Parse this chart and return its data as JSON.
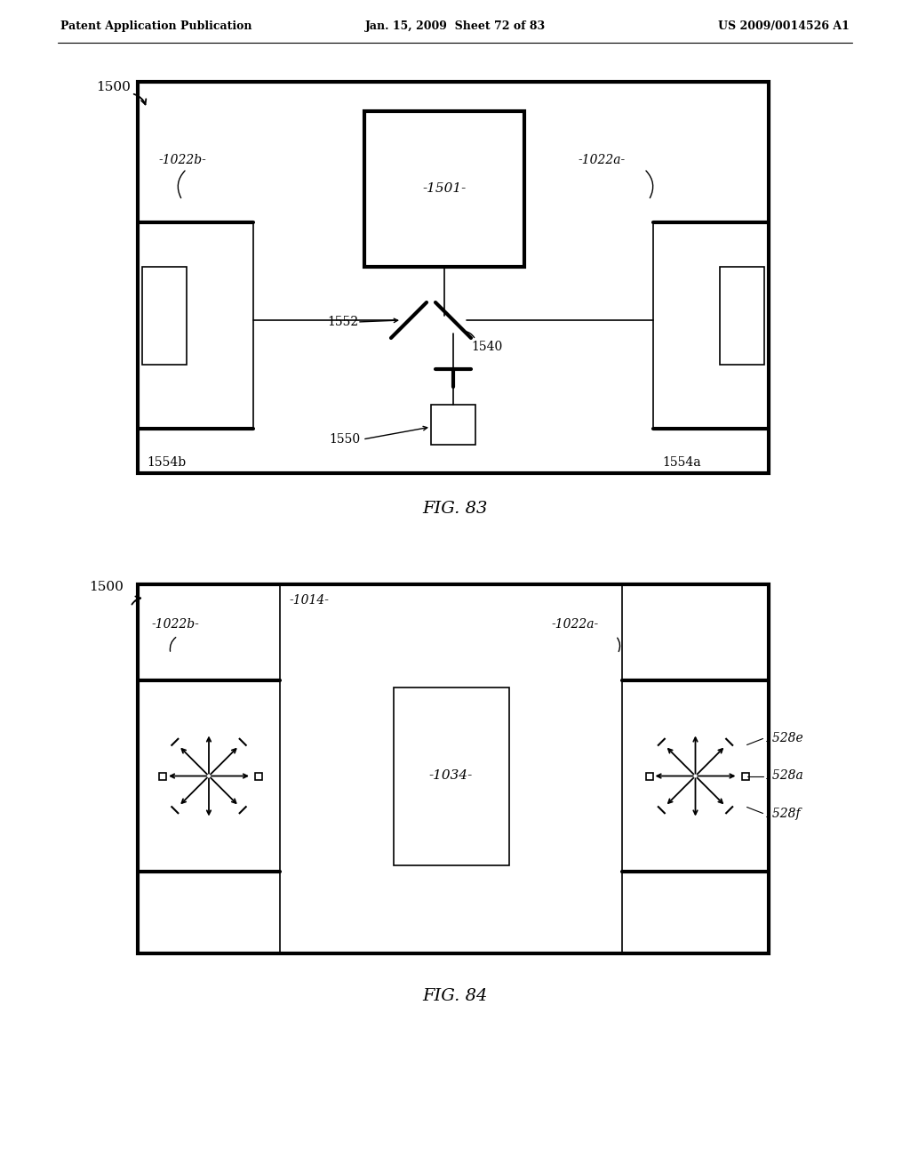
{
  "bg_color": "#ffffff",
  "header_left": "Patent Application Publication",
  "header_mid": "Jan. 15, 2009  Sheet 72 of 83",
  "header_right": "US 2009/0014526 A1",
  "fig83_caption": "FIG. 83",
  "fig84_caption": "FIG. 84",
  "lw_thick": 3.0,
  "lw_thin": 1.2,
  "lw_medium": 1.8
}
